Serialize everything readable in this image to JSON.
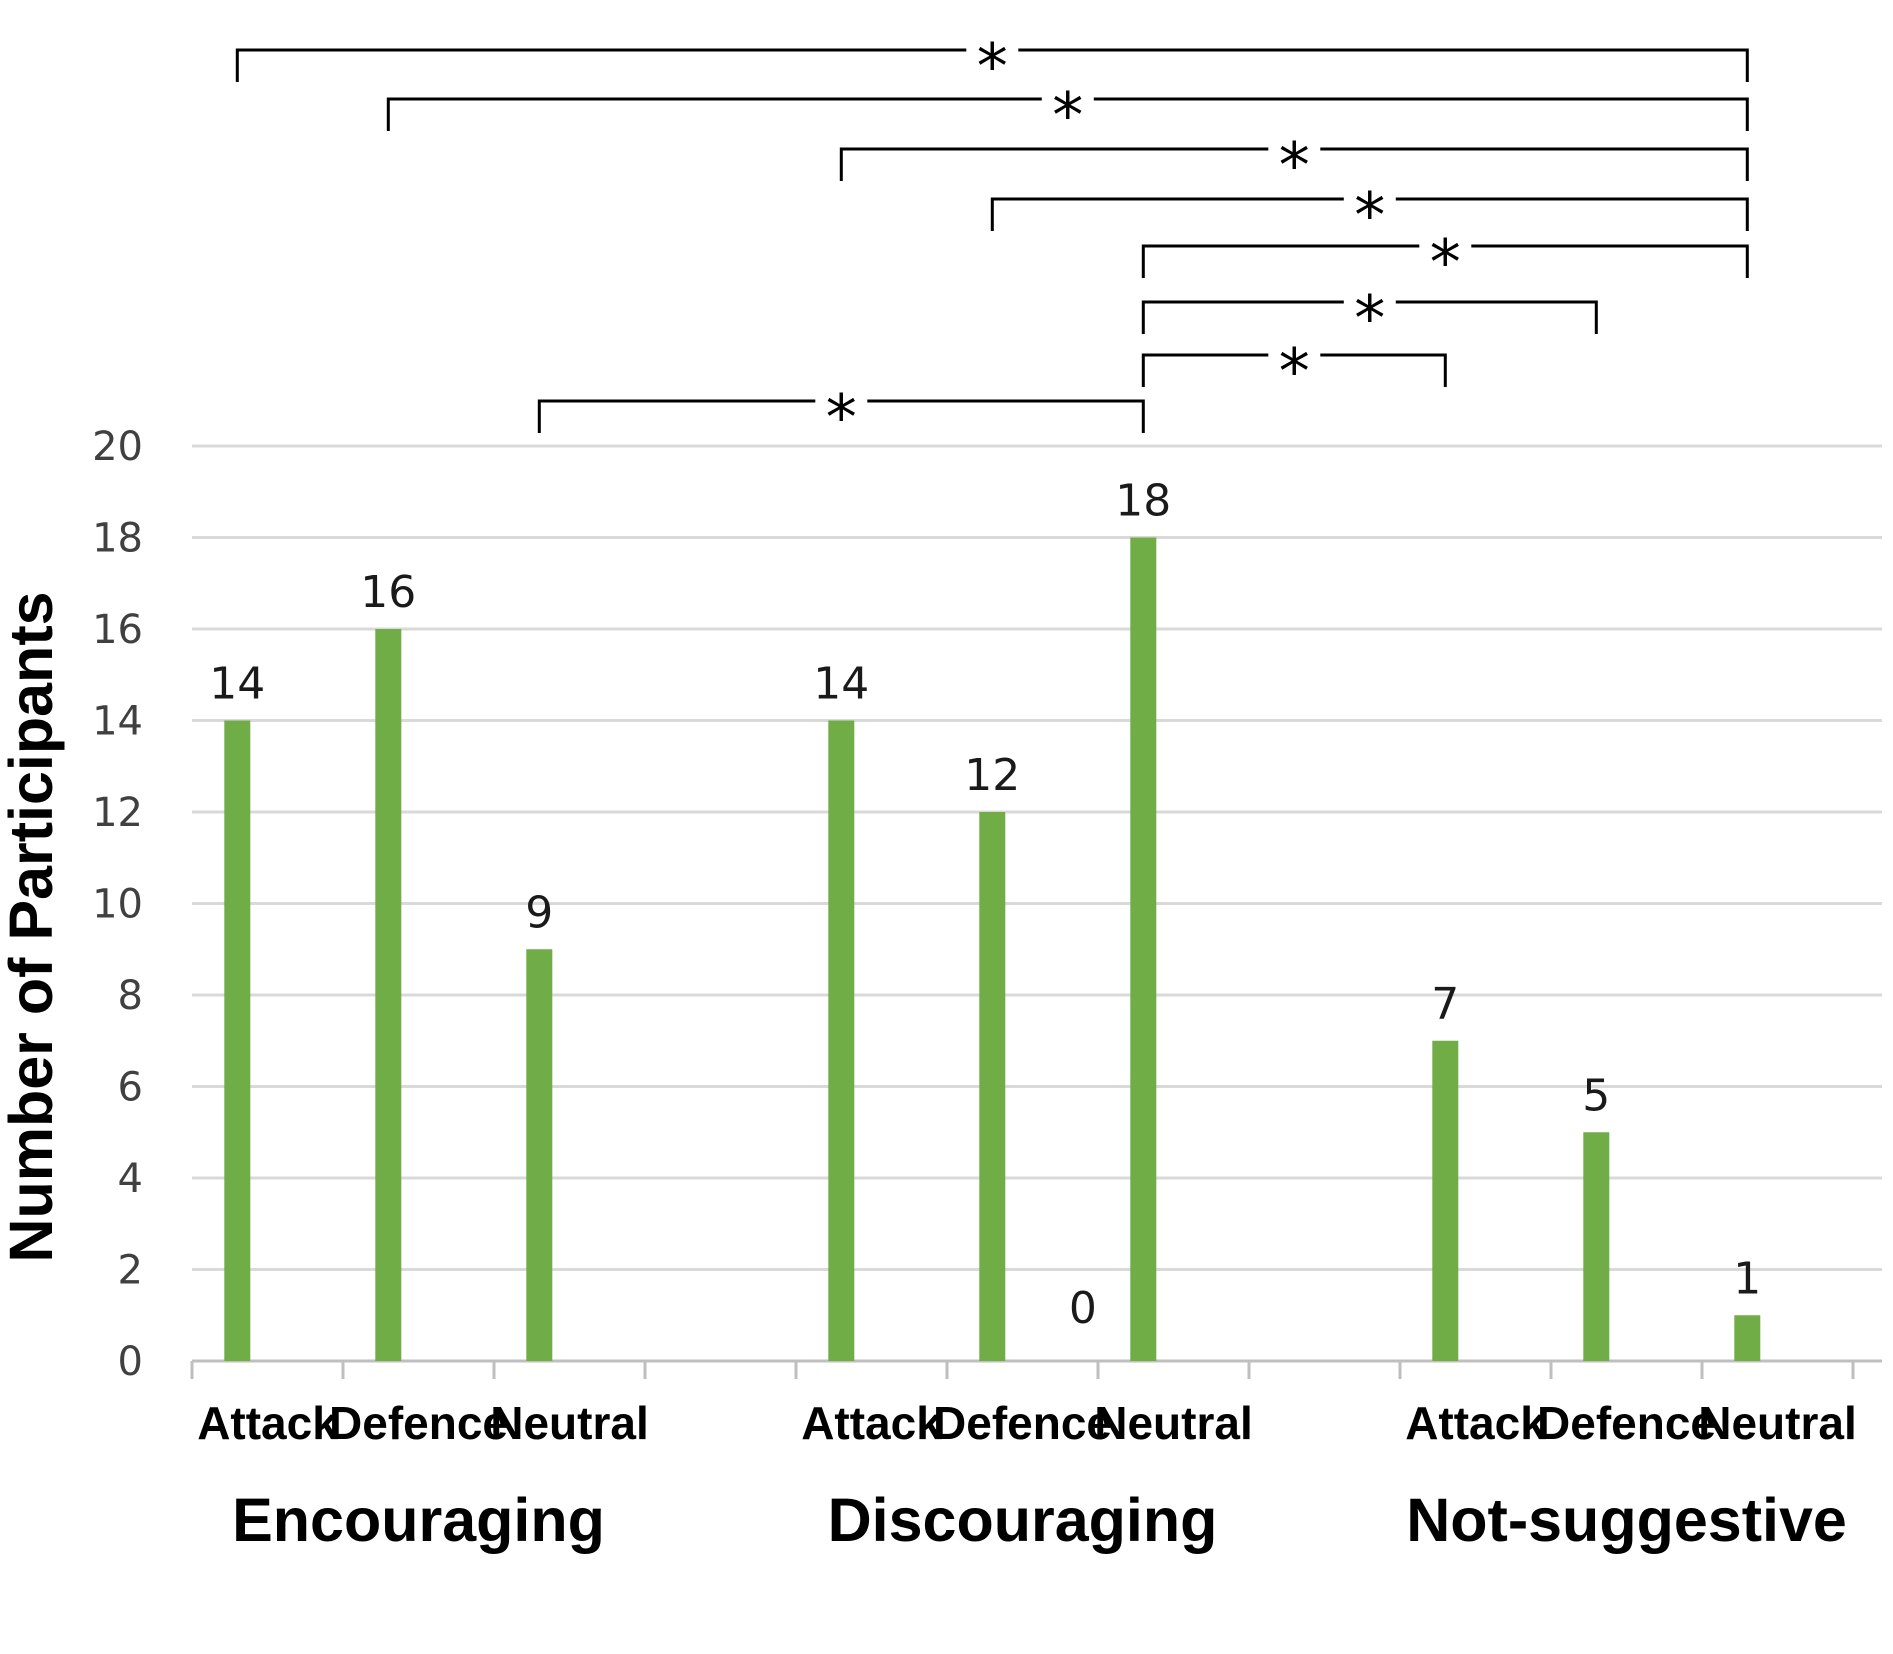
{
  "chart_data": {
    "type": "bar",
    "ylabel": "Number of Participants",
    "xlabel": "",
    "ylim": [
      0,
      20
    ],
    "yticks": [
      "0",
      "2",
      "4",
      "6",
      "8",
      "10",
      "12",
      "14",
      "16",
      "18",
      "20"
    ],
    "grid": true,
    "bar_color": "#70ad47",
    "groups": [
      {
        "name": "Encouraging",
        "bars": [
          {
            "category": "Attack",
            "value": 14
          },
          {
            "category": "Defence",
            "value": 16
          },
          {
            "category": "Neutral",
            "value": 9
          }
        ]
      },
      {
        "name": "Discouraging",
        "bars": [
          {
            "category": "Attack",
            "value": 14
          },
          {
            "category": "Defence",
            "value": 12
          },
          {
            "category": "Neutral",
            "value": 18
          }
        ]
      },
      {
        "name": "Not-suggestive",
        "bars": [
          {
            "category": "Attack",
            "value": 7
          },
          {
            "category": "Defence",
            "value": 5
          },
          {
            "category": "Neutral",
            "value": 1
          }
        ]
      }
    ],
    "extra_labels": [
      {
        "text": "0",
        "group": 1,
        "bar": 1.6
      }
    ],
    "significance": [
      {
        "from": [
          0,
          0
        ],
        "to": [
          2,
          2
        ],
        "label": "*"
      },
      {
        "from": [
          0,
          1
        ],
        "to": [
          2,
          2
        ],
        "label": "*"
      },
      {
        "from": [
          1,
          0
        ],
        "to": [
          2,
          2
        ],
        "label": "*"
      },
      {
        "from": [
          1,
          1
        ],
        "to": [
          2,
          2
        ],
        "label": "*"
      },
      {
        "from": [
          1,
          2
        ],
        "to": [
          2,
          2
        ],
        "label": "*"
      },
      {
        "from": [
          1,
          2
        ],
        "to": [
          2,
          1
        ],
        "label": "*"
      },
      {
        "from": [
          1,
          2
        ],
        "to": [
          2,
          0
        ],
        "label": "*"
      },
      {
        "from": [
          0,
          2
        ],
        "to": [
          1,
          2
        ],
        "label": "*"
      }
    ]
  }
}
